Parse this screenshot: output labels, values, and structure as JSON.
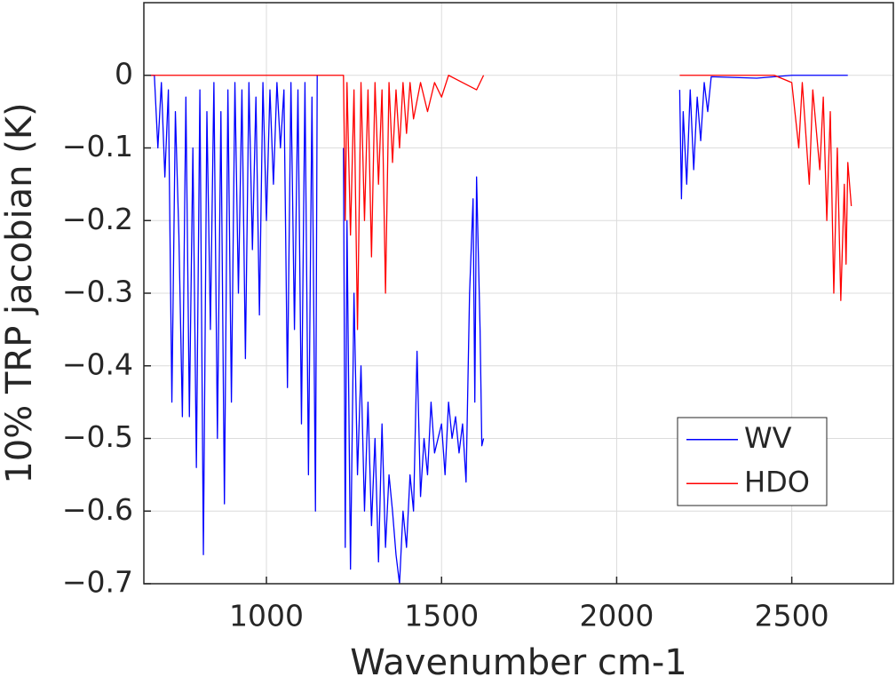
{
  "chart_data": {
    "type": "line",
    "xlabel": "Wavenumber cm-1",
    "ylabel": "10% TRP jacobian (K)",
    "xlim": [
      650,
      2790
    ],
    "ylim": [
      -0.7,
      0.1
    ],
    "xticks": [
      1000,
      1500,
      2000,
      2500
    ],
    "yticks": [
      {
        "value": -0.7,
        "label": "−0.7"
      },
      {
        "value": -0.6,
        "label": "−0.6"
      },
      {
        "value": -0.5,
        "label": "−0.5"
      },
      {
        "value": -0.4,
        "label": "−0.4"
      },
      {
        "value": -0.3,
        "label": "−0.3"
      },
      {
        "value": -0.2,
        "label": "−0.2"
      },
      {
        "value": -0.1,
        "label": "−0.1"
      },
      0
    ],
    "grid": true,
    "legend": "lower right",
    "series": [
      {
        "name": "WV",
        "color": "#0000ff",
        "x": [
          650,
          680,
          690,
          700,
          710,
          720,
          730,
          740,
          750,
          760,
          770,
          780,
          790,
          800,
          810,
          820,
          830,
          840,
          850,
          860,
          870,
          880,
          890,
          900,
          910,
          920,
          930,
          940,
          950,
          960,
          970,
          980,
          990,
          1000,
          1010,
          1020,
          1030,
          1040,
          1050,
          1060,
          1070,
          1080,
          1090,
          1100,
          1110,
          1120,
          1130,
          1140,
          1145,
          1180,
          1220,
          1225,
          1230,
          1240,
          1250,
          1260,
          1270,
          1280,
          1290,
          1300,
          1310,
          1320,
          1330,
          1340,
          1350,
          1360,
          1370,
          1380,
          1390,
          1400,
          1410,
          1420,
          1430,
          1440,
          1450,
          1460,
          1470,
          1480,
          1490,
          1500,
          1510,
          1520,
          1530,
          1540,
          1550,
          1560,
          1570,
          1580,
          1590,
          1595,
          1600,
          1610,
          1615,
          1620,
          1900,
          2180,
          2185,
          2190,
          2200,
          2210,
          2220,
          2230,
          2240,
          2250,
          2260,
          2270,
          2400,
          2500,
          2660
        ],
        "values": [
          0,
          0,
          -0.1,
          -0.01,
          -0.14,
          -0.02,
          -0.45,
          -0.05,
          -0.22,
          -0.47,
          -0.03,
          -0.47,
          -0.1,
          -0.54,
          -0.02,
          -0.66,
          -0.05,
          -0.35,
          -0.01,
          -0.5,
          -0.05,
          -0.59,
          -0.02,
          -0.45,
          -0.01,
          -0.3,
          -0.02,
          -0.39,
          -0.01,
          -0.24,
          -0.03,
          -0.33,
          -0.01,
          -0.2,
          -0.02,
          -0.15,
          -0.01,
          -0.1,
          -0.02,
          -0.43,
          -0.01,
          -0.35,
          -0.02,
          -0.48,
          -0.01,
          -0.55,
          -0.03,
          -0.6,
          0,
          null,
          -0.1,
          -0.65,
          -0.2,
          -0.68,
          -0.3,
          -0.55,
          -0.4,
          -0.6,
          -0.45,
          -0.62,
          -0.5,
          -0.67,
          -0.48,
          -0.65,
          -0.55,
          -0.6,
          -0.66,
          -0.7,
          -0.6,
          -0.65,
          -0.55,
          -0.6,
          -0.38,
          -0.58,
          -0.5,
          -0.55,
          -0.45,
          -0.52,
          -0.5,
          -0.48,
          -0.55,
          -0.45,
          -0.5,
          -0.47,
          -0.52,
          -0.48,
          -0.56,
          -0.3,
          -0.17,
          -0.45,
          -0.14,
          -0.35,
          -0.51,
          -0.5,
          null,
          -0.02,
          -0.17,
          -0.05,
          -0.15,
          -0.02,
          -0.13,
          -0.03,
          -0.09,
          -0.01,
          -0.05,
          -0.002,
          -0.004,
          0,
          0
        ]
      },
      {
        "name": "HDO",
        "color": "#ff0000",
        "x": [
          650,
          1140,
          1220,
          1225,
          1230,
          1240,
          1250,
          1260,
          1270,
          1280,
          1290,
          1300,
          1310,
          1320,
          1330,
          1340,
          1350,
          1360,
          1370,
          1380,
          1390,
          1400,
          1410,
          1420,
          1440,
          1460,
          1480,
          1500,
          1520,
          1560,
          1600,
          1620,
          1900,
          2180,
          2450,
          2500,
          2520,
          2530,
          2550,
          2560,
          2580,
          2590,
          2600,
          2610,
          2620,
          2630,
          2640,
          2650,
          2655,
          2660,
          2670
        ],
        "values": [
          0,
          0,
          0,
          -0.2,
          -0.01,
          -0.22,
          -0.02,
          -0.35,
          -0.01,
          -0.2,
          -0.02,
          -0.25,
          -0.01,
          -0.15,
          -0.02,
          -0.3,
          -0.01,
          -0.12,
          -0.02,
          -0.1,
          -0.01,
          -0.08,
          -0.01,
          -0.06,
          -0.01,
          -0.05,
          -0.01,
          -0.03,
          0,
          -0.01,
          -0.02,
          0,
          null,
          0,
          0,
          -0.01,
          -0.1,
          -0.01,
          -0.15,
          -0.02,
          -0.13,
          -0.03,
          -0.2,
          -0.05,
          -0.3,
          -0.1,
          -0.31,
          -0.15,
          -0.26,
          -0.12,
          -0.18
        ]
      }
    ]
  }
}
